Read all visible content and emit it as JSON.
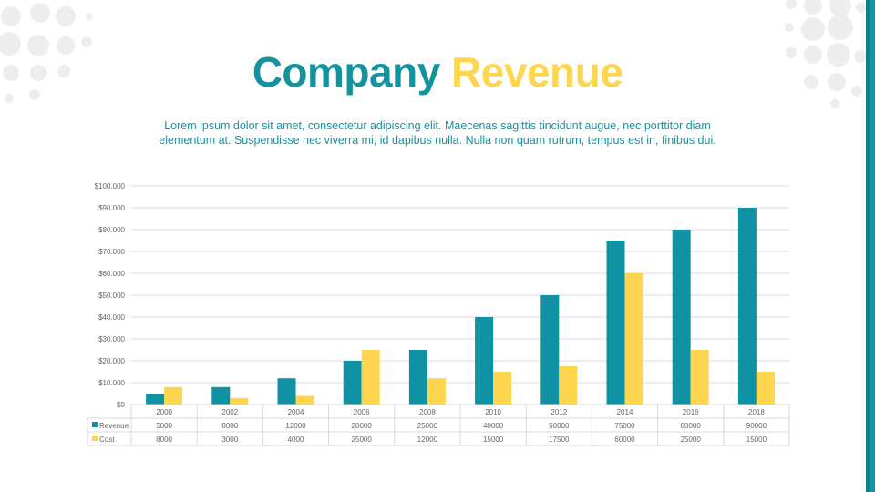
{
  "slide": {
    "title_part1": "Company",
    "title_part2": "Revenue",
    "subtitle": "Lorem ipsum dolor sit amet, consectetur adipiscing elit. Maecenas sagittis tincidunt augue, nec porttitor diam elementum at. Suspendisse nec viverra mi, id dapibus nulla. Nulla non quam rutrum, tempus est in, finibus dui."
  },
  "colors": {
    "accent_teal": "#13939e",
    "accent_yellow": "#fdd54f",
    "revenue": "#0e92a4",
    "cost": "#fdd54f",
    "grid": "#d9d9d9",
    "dots": "#eeeeee"
  },
  "chart_data": {
    "type": "bar",
    "categories": [
      "2000",
      "2002",
      "2004",
      "2006",
      "2008",
      "2010",
      "2012",
      "2014",
      "2016",
      "2018"
    ],
    "series": [
      {
        "name": "Revenue",
        "values": [
          5000,
          8000,
          12000,
          20000,
          25000,
          40000,
          50000,
          75000,
          80000,
          90000
        ]
      },
      {
        "name": "Cost",
        "values": [
          8000,
          3000,
          4000,
          25000,
          12000,
          15000,
          17500,
          60000,
          25000,
          15000
        ]
      }
    ],
    "y_ticks": [
      "$0",
      "$10.000",
      "$20.000",
      "$30.000",
      "$40.000",
      "$50.000",
      "$60.000",
      "$70.000",
      "$80.000",
      "$90.000",
      "$100.000"
    ],
    "ylim": [
      0,
      100000
    ],
    "grid": true,
    "legend": "data-table",
    "data_table": true
  }
}
